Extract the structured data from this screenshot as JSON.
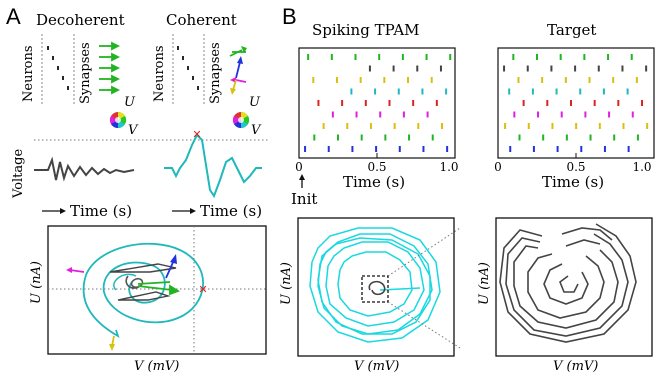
{
  "figure": {
    "panels": [
      {
        "label": "A"
      },
      {
        "label": "B"
      }
    ],
    "panel_a": {
      "decoherent_title": "Decoherent",
      "coherent_title": "Coherent",
      "neurons_label": "Neurons",
      "synapses_label": "Synapses",
      "u_axis": "U",
      "v_axis": "V",
      "voltage_label": "Voltage",
      "time_label": "Time (s)",
      "phase_y_label": "U (nA)",
      "phase_x_label": "V (mV)"
    },
    "panel_b": {
      "spiking_title": "Spiking TPAM",
      "target_title": "Target",
      "x_ticks": [
        "0",
        "0.5",
        "1.0"
      ],
      "time_label": "Time (s)",
      "init_label": "Init",
      "phase_y_label": "U (nA)",
      "phase_x_label": "V (mV)"
    },
    "colors": {
      "cyan": "#1fb8bb",
      "bright_cyan": "#19d8e0",
      "green": "#22b422",
      "blue": "#2233dd",
      "magenta": "#e020e0",
      "yellow": "#d8c010",
      "red": "#dd2222",
      "dark_gray": "#444444"
    }
  }
}
